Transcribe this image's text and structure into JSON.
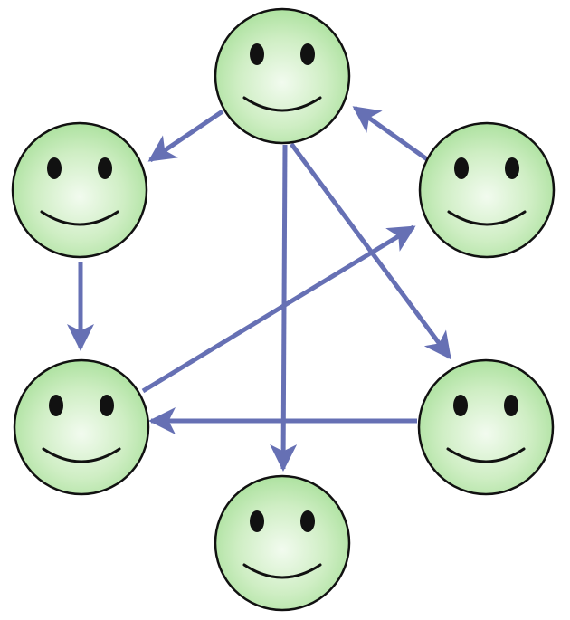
{
  "diagram": {
    "nodes": [
      {
        "id": "top",
        "icon": "smiley-face-icon"
      },
      {
        "id": "upper-left",
        "icon": "smiley-face-icon"
      },
      {
        "id": "upper-right",
        "icon": "smiley-face-icon"
      },
      {
        "id": "lower-left",
        "icon": "smiley-face-icon"
      },
      {
        "id": "lower-right",
        "icon": "smiley-face-icon"
      },
      {
        "id": "bottom",
        "icon": "smiley-face-icon"
      }
    ],
    "edges": [
      {
        "from": "top",
        "to": "upper-left"
      },
      {
        "from": "top",
        "to": "bottom"
      },
      {
        "from": "top",
        "to": "lower-right"
      },
      {
        "from": "upper-right",
        "to": "top"
      },
      {
        "from": "upper-left",
        "to": "lower-left"
      },
      {
        "from": "lower-left",
        "to": "upper-right"
      },
      {
        "from": "lower-right",
        "to": "lower-left"
      }
    ],
    "colors": {
      "edge": "#6670b4",
      "face_center": "#f2fbef",
      "face_edge": "#a6df98",
      "outline": "#111111"
    }
  }
}
